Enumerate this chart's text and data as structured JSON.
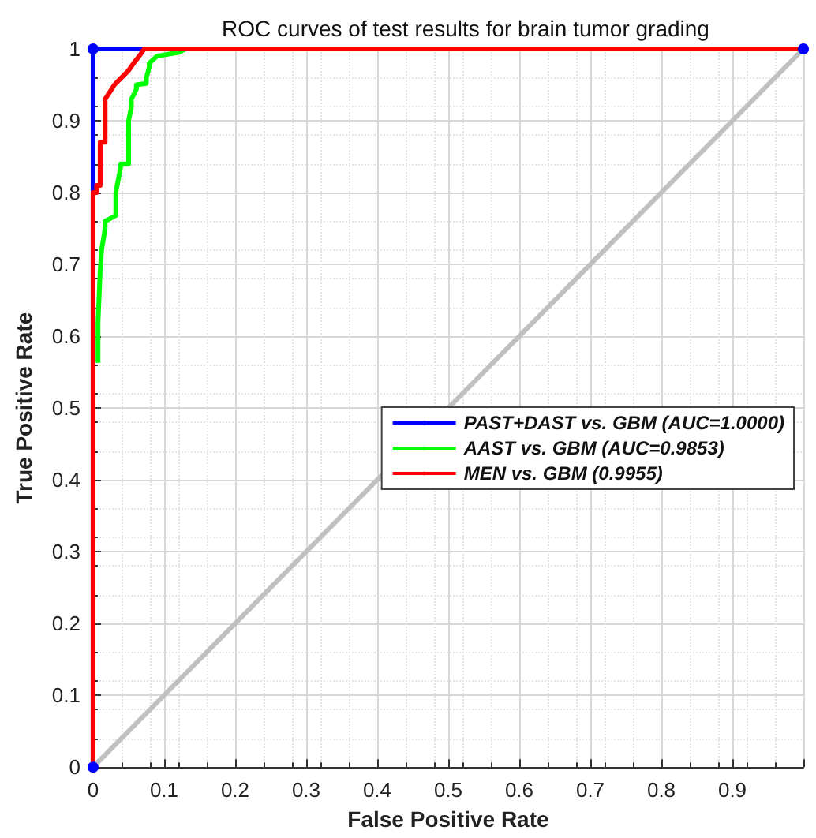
{
  "chart_data": {
    "type": "line",
    "title": "ROC curves of test results for brain tumor grading",
    "xlabel": "False Positive Rate",
    "ylabel": "True Positive Rate",
    "xlim": [
      0,
      1
    ],
    "ylim": [
      0,
      1
    ],
    "xticks": [
      0,
      0.1,
      0.2,
      0.3,
      0.4,
      0.5,
      0.6,
      0.7,
      0.8,
      0.9,
      {
        "value": 1,
        "label": null
      }
    ],
    "yticks": [
      0,
      0.1,
      0.2,
      0.3,
      0.4,
      0.5,
      0.6,
      0.7,
      0.8,
      0.9,
      1
    ],
    "grid": true,
    "legend": "right",
    "series": [
      {
        "x": [
          0,
          1
        ],
        "values": [
          0,
          1
        ],
        "color": "#c0c0c0"
      },
      {
        "name": "PAST+DAST vs. GBM (AUC=1.0000)",
        "color": "#0000ff",
        "marker": "circle",
        "x": [
          0,
          0,
          1
        ],
        "values": [
          0,
          1,
          1
        ]
      },
      {
        "name": "AAST vs. GBM (AUC=0.9853)",
        "color": "#00ff00",
        "x": [
          0.007,
          0.007,
          0.01,
          0.012,
          0.017,
          0.017,
          0.032,
          0.032,
          0.039,
          0.039,
          0.05,
          0.05,
          0.054,
          0.054,
          0.061,
          0.061,
          0.075,
          0.075,
          0.079,
          0.079,
          0.09,
          0.09,
          0.12,
          0.13
        ],
        "values": [
          0.563,
          0.62,
          0.69,
          0.72,
          0.75,
          0.76,
          0.768,
          0.8,
          0.836,
          0.84,
          0.84,
          0.9,
          0.92,
          0.93,
          0.944,
          0.95,
          0.952,
          0.96,
          0.974,
          0.98,
          0.99,
          0.99,
          0.995,
          1
        ]
      },
      {
        "name": "MEN vs. GBM (0.9955)",
        "color": "#ff0000",
        "x": [
          0,
          0,
          0.005,
          0.005,
          0.01,
          0.01,
          0.017,
          0.017,
          0.03,
          0.04,
          0.05,
          0.057,
          0.065,
          0.072,
          1
        ],
        "values": [
          0,
          0.8,
          0.8,
          0.81,
          0.81,
          0.87,
          0.87,
          0.93,
          0.95,
          0.96,
          0.97,
          0.98,
          0.99,
          1,
          1
        ]
      }
    ]
  }
}
